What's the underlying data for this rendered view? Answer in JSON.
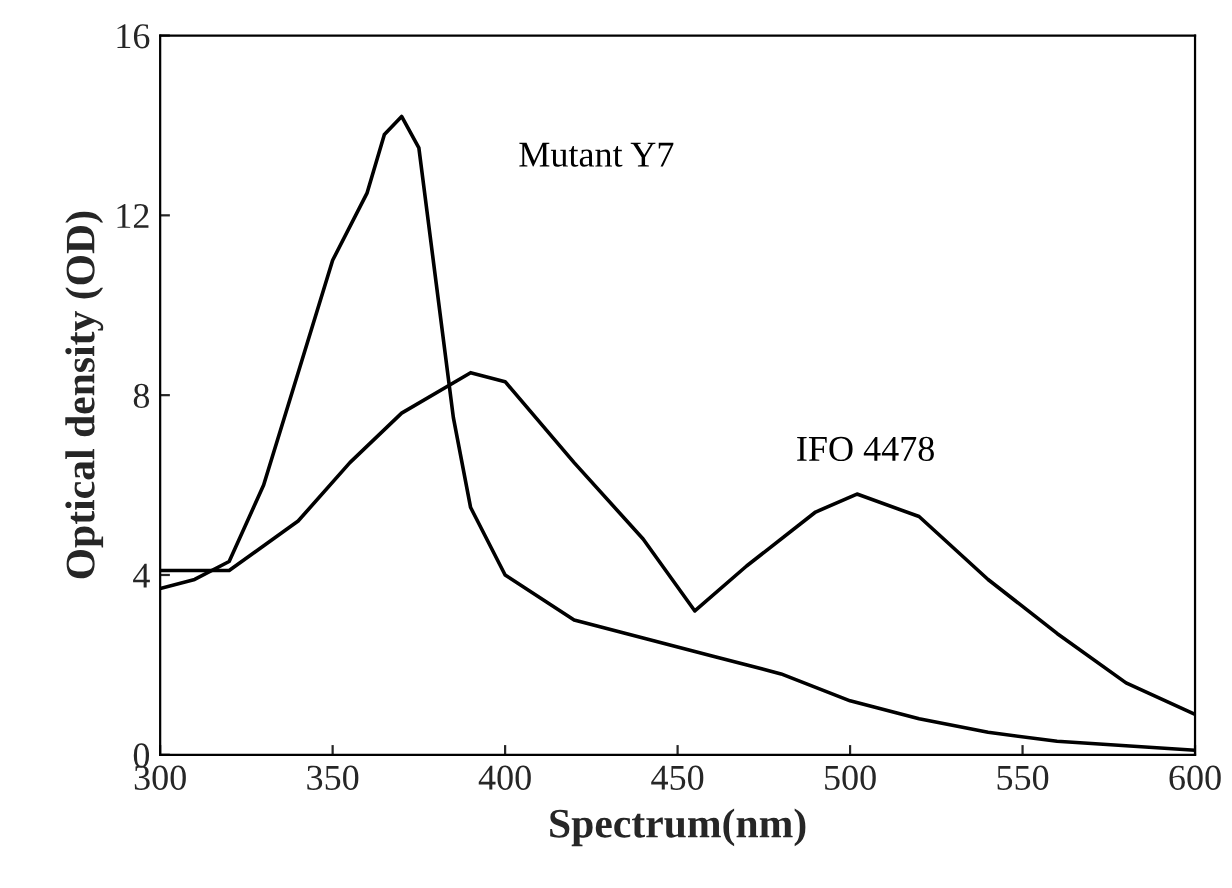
{
  "chart_data": {
    "type": "line",
    "xlabel": "Spectrum(nm)",
    "ylabel": "Optical density (OD)",
    "xlim": [
      300,
      600
    ],
    "ylim": [
      0,
      16
    ],
    "xticks": [
      300,
      350,
      400,
      450,
      500,
      550,
      600
    ],
    "yticks": [
      0,
      4,
      8,
      12,
      16
    ],
    "grid": false,
    "legend": false,
    "marker": "none",
    "line_style": "solid",
    "series": [
      {
        "name": "Mutant Y7",
        "color": "#000000",
        "x": [
          300,
          310,
          320,
          330,
          340,
          350,
          360,
          365,
          370,
          375,
          380,
          385,
          390,
          400,
          420,
          440,
          460,
          480,
          500,
          520,
          540,
          560,
          580,
          600
        ],
        "values": [
          3.7,
          3.9,
          4.3,
          6,
          8.5,
          11,
          12.5,
          13.8,
          14.2,
          13.5,
          10.5,
          7.5,
          5.5,
          4,
          3,
          2.6,
          2.2,
          1.8,
          1.2,
          0.8,
          0.5,
          0.3,
          0.2,
          0.1
        ]
      },
      {
        "name": "IFO 4478",
        "color": "#000000",
        "x": [
          300,
          320,
          340,
          355,
          370,
          390,
          400,
          420,
          440,
          455,
          470,
          490,
          502,
          520,
          540,
          560,
          580,
          600
        ],
        "values": [
          4.1,
          4.1,
          5.2,
          6.5,
          7.6,
          8.5,
          8.3,
          6.5,
          4.8,
          3.2,
          4.2,
          5.4,
          5.8,
          5.3,
          3.9,
          2.7,
          1.6,
          0.9
        ]
      }
    ]
  }
}
